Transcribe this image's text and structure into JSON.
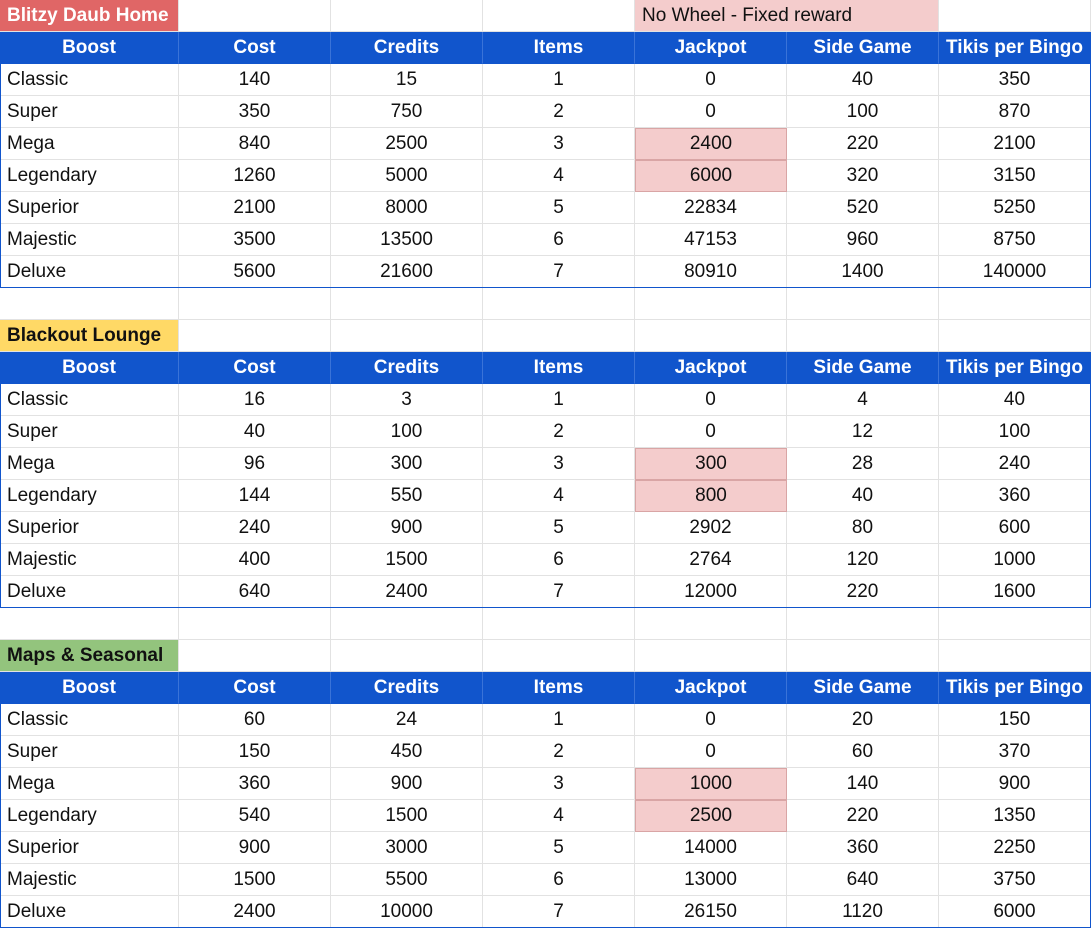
{
  "legend_note": "No Wheel - Fixed reward",
  "headers": [
    "Boost",
    "Cost",
    "Credits",
    "Items",
    "Jackpot",
    "Side Game",
    "Tikis per Bingo"
  ],
  "colors": {
    "header_bg": "#1155cc",
    "highlight": "#f4cccc",
    "title_red": "#e06666",
    "title_yellow": "#ffd966",
    "title_green": "#93c47d"
  },
  "sections": [
    {
      "title": "Blitzy Daub Home",
      "rows": [
        [
          "Classic",
          "140",
          "15",
          "1",
          "0",
          "40",
          "350"
        ],
        [
          "Super",
          "350",
          "750",
          "2",
          "0",
          "100",
          "870"
        ],
        [
          "Mega",
          "840",
          "2500",
          "3",
          "2400",
          "220",
          "2100"
        ],
        [
          "Legendary",
          "1260",
          "5000",
          "4",
          "6000",
          "320",
          "3150"
        ],
        [
          "Superior",
          "2100",
          "8000",
          "5",
          "22834",
          "520",
          "5250"
        ],
        [
          "Majestic",
          "3500",
          "13500",
          "6",
          "47153",
          "960",
          "8750"
        ],
        [
          "Deluxe",
          "5600",
          "21600",
          "7",
          "80910",
          "1400",
          "140000"
        ]
      ]
    },
    {
      "title": "Blackout Lounge",
      "rows": [
        [
          "Classic",
          "16",
          "3",
          "1",
          "0",
          "4",
          "40"
        ],
        [
          "Super",
          "40",
          "100",
          "2",
          "0",
          "12",
          "100"
        ],
        [
          "Mega",
          "96",
          "300",
          "3",
          "300",
          "28",
          "240"
        ],
        [
          "Legendary",
          "144",
          "550",
          "4",
          "800",
          "40",
          "360"
        ],
        [
          "Superior",
          "240",
          "900",
          "5",
          "2902",
          "80",
          "600"
        ],
        [
          "Majestic",
          "400",
          "1500",
          "6",
          "2764",
          "120",
          "1000"
        ],
        [
          "Deluxe",
          "640",
          "2400",
          "7",
          "12000",
          "220",
          "1600"
        ]
      ]
    },
    {
      "title": "Maps & Seasonal",
      "rows": [
        [
          "Classic",
          "60",
          "24",
          "1",
          "0",
          "20",
          "150"
        ],
        [
          "Super",
          "150",
          "450",
          "2",
          "0",
          "60",
          "370"
        ],
        [
          "Mega",
          "360",
          "900",
          "3",
          "1000",
          "140",
          "900"
        ],
        [
          "Legendary",
          "540",
          "1500",
          "4",
          "2500",
          "220",
          "1350"
        ],
        [
          "Superior",
          "900",
          "3000",
          "5",
          "14000",
          "360",
          "2250"
        ],
        [
          "Majestic",
          "1500",
          "5500",
          "6",
          "13000",
          "640",
          "3750"
        ],
        [
          "Deluxe",
          "2400",
          "10000",
          "7",
          "26150",
          "1120",
          "6000"
        ]
      ]
    }
  ]
}
